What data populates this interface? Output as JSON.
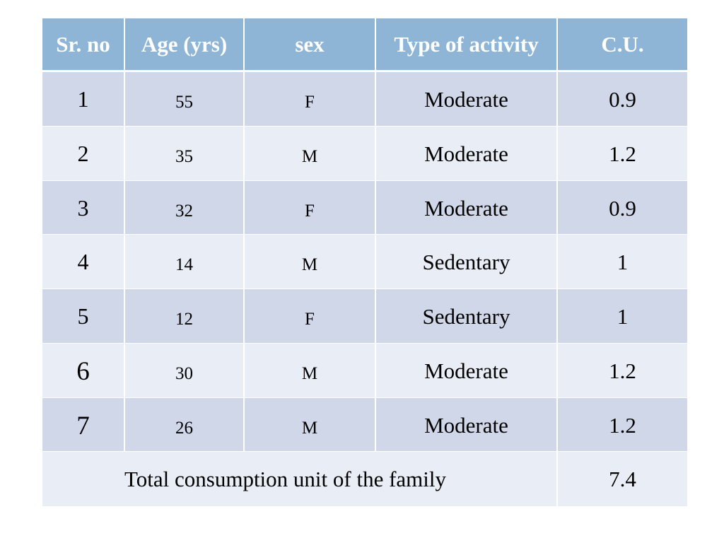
{
  "table": {
    "headers": [
      "Sr. no",
      "Age (yrs)",
      "sex",
      "Type of activity",
      "C.U."
    ],
    "rows": [
      {
        "sr": "1",
        "age": "55",
        "sex": "F",
        "activity": "Moderate",
        "cu": "0.9"
      },
      {
        "sr": "2",
        "age": "35",
        "sex": "M",
        "activity": "Moderate",
        "cu": "1.2"
      },
      {
        "sr": "3",
        "age": "32",
        "sex": "F",
        "activity": "Moderate",
        "cu": "0.9"
      },
      {
        "sr": "4",
        "age": "14",
        "sex": "M",
        "activity": "Sedentary",
        "cu": "1"
      },
      {
        "sr": "5",
        "age": "12",
        "sex": "F",
        "activity": "Sedentary",
        "cu": "1"
      },
      {
        "sr": "6",
        "age": "30",
        "sex": "M",
        "activity": "Moderate",
        "cu": "1.2"
      },
      {
        "sr": "7",
        "age": "26",
        "sex": "M",
        "activity": "Moderate",
        "cu": "1.2"
      }
    ],
    "total_label": "Total consumption unit of the family",
    "total_value": "7.4"
  },
  "colors": {
    "header_bg": "#8eb4d6",
    "row_odd_bg": "#cfd7e9",
    "row_even_bg": "#e9edf5"
  }
}
